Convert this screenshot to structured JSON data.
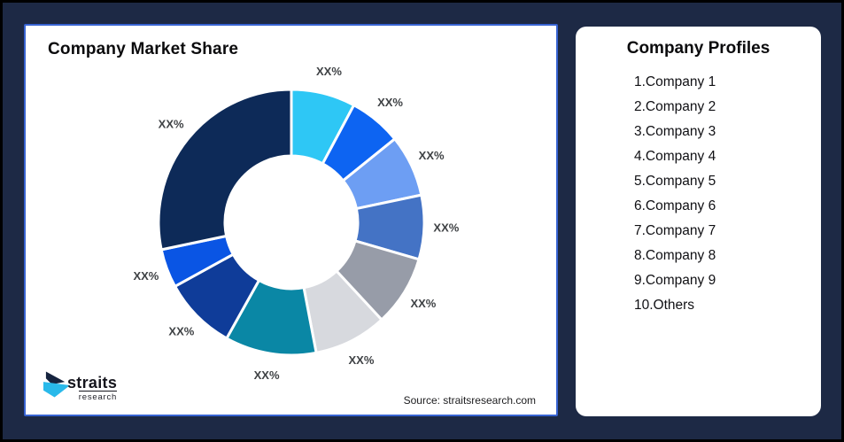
{
  "colors": {
    "background": "#1d2945",
    "outer_border": "#000000",
    "card_border": "#3763d2",
    "segment_label_color": "#3f4245"
  },
  "chart_card": {
    "title": "Company Market Share",
    "source": "Source: straitsresearch.com"
  },
  "logo": {
    "name": "straits",
    "sub": "research",
    "mark_navy": "#16243f",
    "mark_cyan": "#29b9ea"
  },
  "profiles_card": {
    "title": "Company Profiles",
    "items": [
      "1.Company 1",
      "2.Company 2",
      "3.Company 3",
      "4.Company 4",
      "5.Company 5",
      "6.Company 6",
      "7.Company 7",
      "8.Company 8",
      "9.Company 9",
      "10.Others"
    ]
  },
  "chart_data": {
    "type": "pie",
    "subtype": "donut",
    "title": "Company Market Share",
    "source": "Source: straitsresearch.com",
    "start_angle_deg": 0,
    "direction": "clockwise",
    "center": [
      300,
      222
    ],
    "outer_radius": 150,
    "inner_radius": 75,
    "label_radius": 175,
    "values_are_visual_estimates": true,
    "segments": [
      {
        "label": "XX%",
        "value_pct": 7.8,
        "color": "#2ec7f5"
      },
      {
        "label": "XX%",
        "value_pct": 6.4,
        "color": "#0d64f2"
      },
      {
        "label": "XX%",
        "value_pct": 7.5,
        "color": "#6d9ef3"
      },
      {
        "label": "XX%",
        "value_pct": 7.8,
        "color": "#4473c5"
      },
      {
        "label": "XX%",
        "value_pct": 8.6,
        "color": "#979ca8"
      },
      {
        "label": "XX%",
        "value_pct": 8.9,
        "color": "#d7d9de"
      },
      {
        "label": "XX%",
        "value_pct": 11.1,
        "color": "#0a87a5"
      },
      {
        "label": "XX%",
        "value_pct": 8.9,
        "color": "#0f3c99"
      },
      {
        "label": "XX%",
        "value_pct": 4.7,
        "color": "#0a55e4"
      },
      {
        "label": "XX%",
        "value_pct": 28.3,
        "color": "#0d2a58"
      }
    ]
  }
}
